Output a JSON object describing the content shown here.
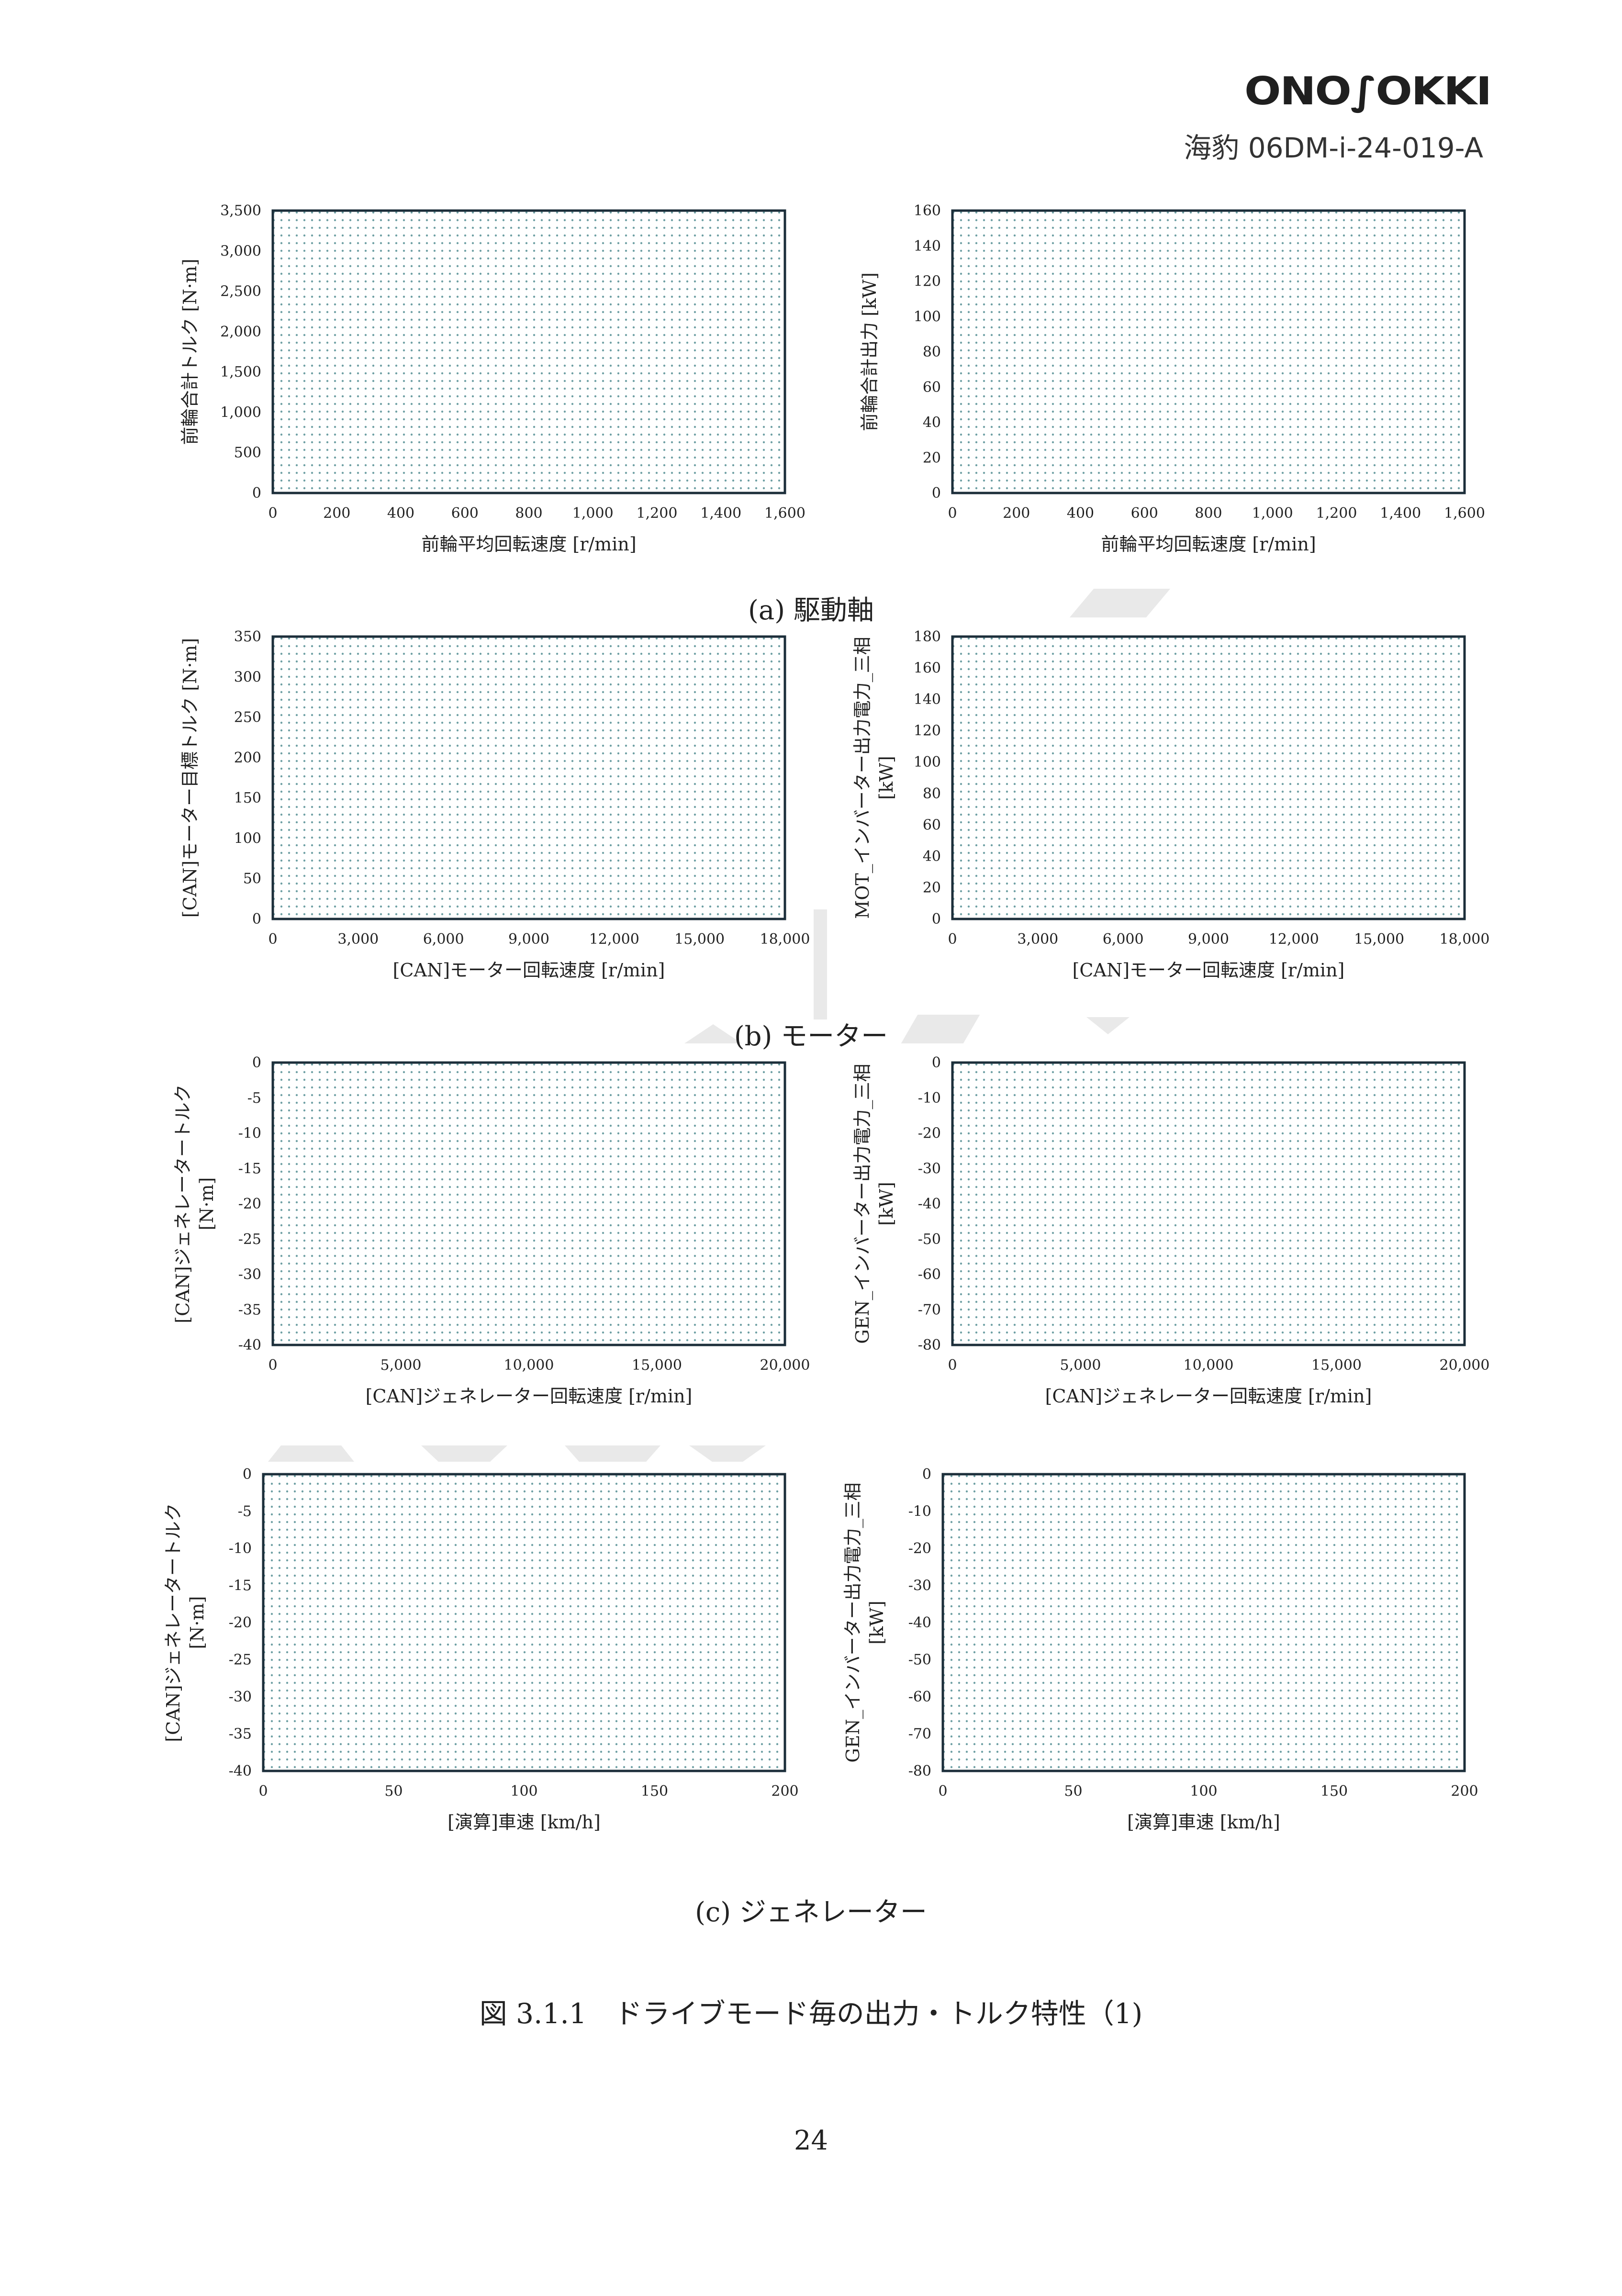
{
  "header": {
    "logo_text": "ONO SOKKI",
    "doc_id": "海豹 06DM-i-24-019-A"
  },
  "captions": {
    "a": "(a) 駆動軸",
    "b": "(b) モーター",
    "c": "(c) ジェネレーター"
  },
  "figure_caption": "図 3.1.1　ドライブモード毎の出力・トルク特性（1)",
  "page_number": "24",
  "colors": {
    "dots": "#6fa0a4",
    "frame": "#1c2e3a",
    "text": "#222222"
  },
  "chart_data": [
    {
      "type": "scatter",
      "xlabel": "前輪平均回転速度 [r/min]",
      "ylabel": "前輪合計トルク [N·m]",
      "xlim": [
        0,
        1600
      ],
      "ylim": [
        0,
        3500
      ],
      "xticks": [
        "0",
        "200",
        "400",
        "600",
        "800",
        "1,000",
        "1,200",
        "1,400",
        "1,600"
      ],
      "yticks": [
        "0",
        "500",
        "1,000",
        "1,500",
        "2,000",
        "2,500",
        "3,000",
        "3,500"
      ]
    },
    {
      "type": "scatter",
      "xlabel": "前輪平均回転速度 [r/min]",
      "ylabel": "前輪合計出力 [kW]",
      "xlim": [
        0,
        1600
      ],
      "ylim": [
        0,
        160
      ],
      "xticks": [
        "0",
        "200",
        "400",
        "600",
        "800",
        "1,000",
        "1,200",
        "1,400",
        "1,600"
      ],
      "yticks": [
        "0",
        "20",
        "40",
        "60",
        "80",
        "100",
        "120",
        "140",
        "160"
      ]
    },
    {
      "type": "scatter",
      "xlabel": "[CAN]モーター回転速度 [r/min]",
      "ylabel": "[CAN]モーター目標トルク [N·m]",
      "xlim": [
        0,
        18000
      ],
      "ylim": [
        0,
        350
      ],
      "xticks": [
        "0",
        "3,000",
        "6,000",
        "9,000",
        "12,000",
        "15,000",
        "18,000"
      ],
      "yticks": [
        "0",
        "50",
        "100",
        "150",
        "200",
        "250",
        "300",
        "350"
      ]
    },
    {
      "type": "scatter",
      "xlabel": "[CAN]モーター回転速度 [r/min]",
      "ylabel": "MOT_インバーター出力電力_三相",
      "ylabel2": "[kW]",
      "xlim": [
        0,
        18000
      ],
      "ylim": [
        0,
        180
      ],
      "xticks": [
        "0",
        "3,000",
        "6,000",
        "9,000",
        "12,000",
        "15,000",
        "18,000"
      ],
      "yticks": [
        "0",
        "20",
        "40",
        "60",
        "80",
        "100",
        "120",
        "140",
        "160",
        "180"
      ]
    },
    {
      "type": "scatter",
      "xlabel": "[CAN]ジェネレーター回転速度 [r/min]",
      "ylabel": "[CAN]ジェネレータートルク",
      "ylabel2": "[N·m]",
      "xlim": [
        0,
        20000
      ],
      "ylim": [
        -40,
        0
      ],
      "xticks": [
        "0",
        "5,000",
        "10,000",
        "15,000",
        "20,000"
      ],
      "yticks": [
        "-40",
        "-35",
        "-30",
        "-25",
        "-20",
        "-15",
        "-10",
        "-5",
        "0"
      ]
    },
    {
      "type": "scatter",
      "xlabel": "[CAN]ジェネレーター回転速度 [r/min]",
      "ylabel": "GEN_インバーター出力電力_三相",
      "ylabel2": "[kW]",
      "xlim": [
        0,
        20000
      ],
      "ylim": [
        -80,
        0
      ],
      "xticks": [
        "0",
        "5,000",
        "10,000",
        "15,000",
        "20,000"
      ],
      "yticks": [
        "-80",
        "-70",
        "-60",
        "-50",
        "-40",
        "-30",
        "-20",
        "-10",
        "0"
      ]
    },
    {
      "type": "scatter",
      "xlabel": "[演算]車速 [km/h]",
      "ylabel": "[CAN]ジェネレータートルク",
      "ylabel2": "[N·m]",
      "xlim": [
        0,
        200
      ],
      "ylim": [
        -40,
        0
      ],
      "xticks": [
        "0",
        "50",
        "100",
        "150",
        "200"
      ],
      "yticks": [
        "-40",
        "-35",
        "-30",
        "-25",
        "-20",
        "-15",
        "-10",
        "-5",
        "0"
      ]
    },
    {
      "type": "scatter",
      "xlabel": "[演算]車速 [km/h]",
      "ylabel": "GEN_インバーター出力電力_三相",
      "ylabel2": "[kW]",
      "xlim": [
        0,
        200
      ],
      "ylim": [
        -80,
        0
      ],
      "xticks": [
        "0",
        "50",
        "100",
        "150",
        "200"
      ],
      "yticks": [
        "-80",
        "-70",
        "-60",
        "-50",
        "-40",
        "-30",
        "-20",
        "-10",
        "0"
      ]
    }
  ]
}
